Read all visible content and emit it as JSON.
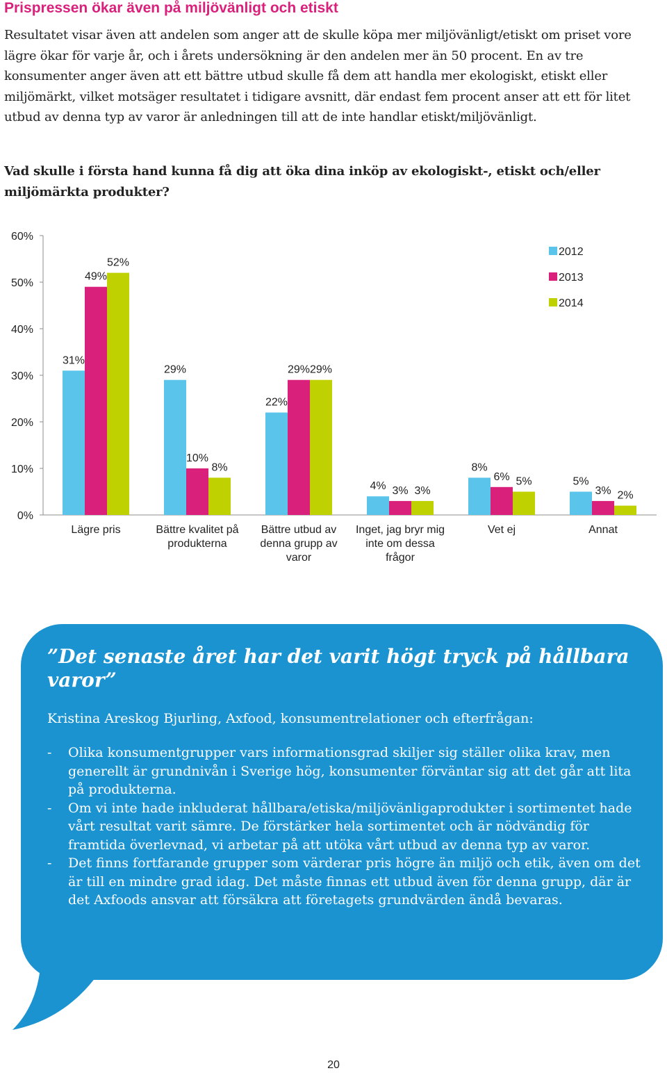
{
  "heading": "Prispressen ökar även på miljövänligt och etiskt",
  "intro": "Resultatet visar även att andelen som anger att de skulle köpa mer miljövänligt/etiskt om priset vore lägre ökar för varje år, och i årets undersökning är den andelen mer än 50 procent. En av tre konsumenter anger även att ett bättre utbud skulle få dem att handla mer ekologiskt, etiskt eller miljömärkt, vilket motsäger resultatet i tidigare avsnitt, där endast fem procent anser att ett för litet utbud av denna typ av varor är anledningen till att de inte handlar etiskt/miljövänligt.",
  "question": "Vad skulle i första hand kunna få dig att öka dina inköp av ekologiskt-, etiskt och/eller miljömärkta produkter?",
  "chart_data": {
    "type": "bar",
    "categories": [
      [
        "Lägre pris"
      ],
      [
        "Bättre kvalitet på",
        "produkterna"
      ],
      [
        "Bättre utbud av",
        "denna grupp av",
        "varor"
      ],
      [
        "Inget, jag bryr mig",
        "inte om dessa",
        "frågor"
      ],
      [
        "Vet ej"
      ],
      [
        "Annat"
      ]
    ],
    "series": [
      {
        "name": "2012",
        "color": "#5bc4ea",
        "values": [
          31,
          29,
          22,
          4,
          8,
          5
        ]
      },
      {
        "name": "2013",
        "color": "#d9217c",
        "values": [
          49,
          10,
          29,
          3,
          6,
          3
        ]
      },
      {
        "name": "2014",
        "color": "#bfd100",
        "values": [
          52,
          8,
          29,
          3,
          5,
          2
        ]
      }
    ],
    "ylim": [
      0,
      60
    ],
    "yticks": [
      "0%",
      "10%",
      "20%",
      "30%",
      "40%",
      "50%",
      "60%"
    ],
    "value_suffix": "%",
    "legend_position": "top-right",
    "grid": false
  },
  "callout": {
    "title": "”Det senaste året har det varit högt tryck på hållbara varor”",
    "attribution": "Kristina Areskog Bjurling, Axfood, konsumentrelationer och efterfrågan:",
    "bullet_marker": "-",
    "bullets": [
      "Olika konsumentgrupper vars informationsgrad skiljer sig ställer olika krav, men generellt är grundnivån i Sverige hög, konsumenter förväntar sig att det går att lita på produkterna.",
      "Om vi inte hade inkluderat hållbara/etiska/miljövänligaprodukter i sortimentet hade vårt resultat varit sämre. De förstärker hela sortimentet och är nödvändig för framtida överlevnad, vi arbetar på att utöka vårt utbud av denna typ av varor.",
      "Det finns fortfarande grupper som värderar pris högre än miljö och etik, även om det är till en mindre grad idag. Det måste finnas ett utbud även för denna grupp, där är det Axfoods ansvar att försäkra att företagets grundvärden ändå bevaras."
    ]
  },
  "page_number": "20"
}
